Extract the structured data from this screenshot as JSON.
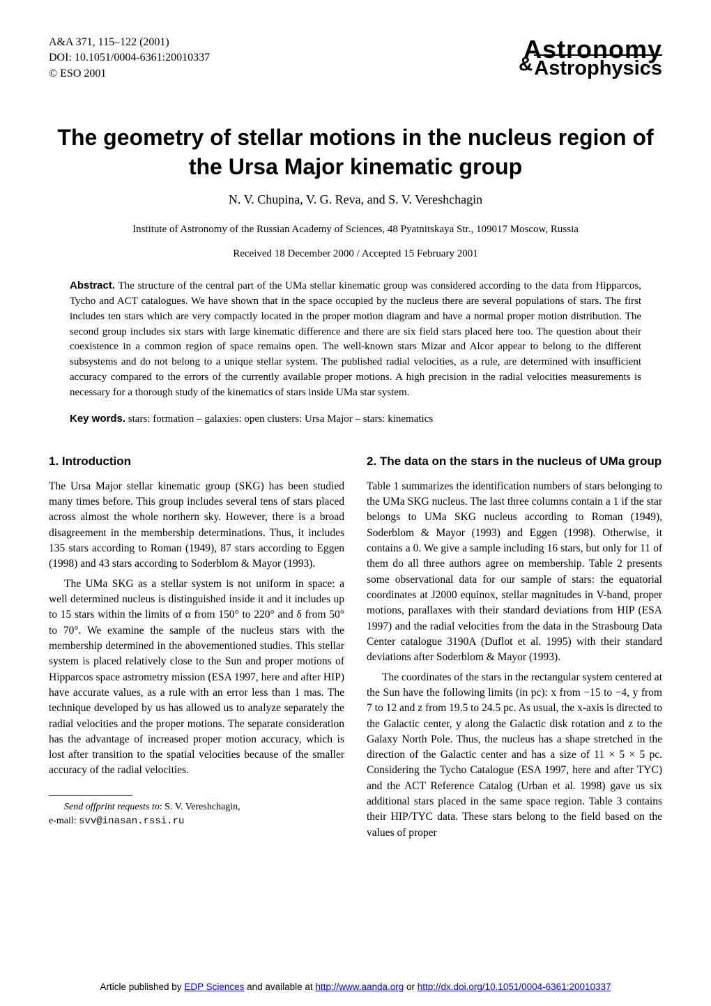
{
  "journal": {
    "citation": "A&A 371, 115–122 (2001)",
    "doi": "DOI: 10.1051/0004-6361:20010337",
    "copyright": "© ESO 2001"
  },
  "logo": {
    "line1": "Astronomy",
    "amp": "&",
    "line2": "Astrophysics"
  },
  "title": "The geometry of stellar motions in the nucleus region of the Ursa Major kinematic group",
  "authors": "N. V. Chupina, V. G. Reva, and S. V. Vereshchagin",
  "affiliation": "Institute of Astronomy of the Russian Academy of Sciences, 48 Pyatnitskaya Str., 109017 Moscow, Russia",
  "dates": "Received 18 December 2000 / Accepted 15 February 2001",
  "abstract": {
    "label": "Abstract.",
    "text": " The structure of the central part of the UMa stellar kinematic group was considered according to the data from Hipparcos, Tycho and ACT catalogues. We have shown that in the space occupied by the nucleus there are several populations of stars. The first includes ten stars which are very compactly located in the proper motion diagram and have a normal proper motion distribution. The second group includes six stars with large kinematic difference and there are six field stars placed here too. The question about their coexistence in a common region of space remains open. The well-known stars Mizar and Alcor appear to belong to the different subsystems and do not belong to a unique stellar system. The published radial velocities, as a rule, are determined with insufficient accuracy compared to the errors of the currently available proper motions. A high precision in the radial velocities measurements is necessary for a thorough study of the kinematics of stars inside UMa star system."
  },
  "keywords": {
    "label": "Key words.",
    "text": " stars: formation – galaxies: open clusters: Ursa Major – stars: kinematics"
  },
  "sections": {
    "s1": {
      "heading": "1. Introduction",
      "p1": "The Ursa Major stellar kinematic group (SKG) has been studied many times before. This group includes several tens of stars placed across almost the whole northern sky. However, there is a broad disagreement in the membership determinations. Thus, it includes 135 stars according to Roman (1949), 87 stars according to Eggen (1998) and 43 stars according to Soderblom & Mayor (1993).",
      "p2": "The UMa SKG as a stellar system is not uniform in space: a well determined nucleus is distinguished inside it and it includes up to 15 stars within the limits of α from 150° to 220° and δ from 50° to 70°. We examine the sample of the nucleus stars with the membership determined in the abovementioned studies. This stellar system is placed relatively close to the Sun and proper motions of Hipparcos space astrometry mission (ESA 1997, here and after HIP) have accurate values, as a rule with an error less than 1 mas. The technique developed by us has allowed us to analyze separately the radial velocities and the proper motions. The separate consideration has the advantage of increased proper motion accuracy, which is lost after transition to the spatial velocities because of the smaller accuracy of the radial velocities."
    },
    "s2": {
      "heading": "2. The data on the stars in the nucleus of UMa group",
      "p1": "Table 1 summarizes the identification numbers of stars belonging to the UMa SKG nucleus. The last three columns contain a 1 if the star belongs to UMa SKG nucleus according to Roman (1949), Soderblom & Mayor (1993) and Eggen (1998). Otherwise, it contains a 0. We give a sample including 16 stars, but only for 11 of them do all three authors agree on membership. Table 2 presents some observational data for our sample of stars: the equatorial coordinates at J2000 equinox, stellar magnitudes in V-band, proper motions, parallaxes with their standard deviations from HIP (ESA 1997) and the radial velocities from the data in the Strasbourg Data Center catalogue 3190A (Duflot et al. 1995) with their standard deviations after Soderblom & Mayor (1993).",
      "p2": "The coordinates of the stars in the rectangular system centered at the Sun have the following limits (in pc): x from −15 to −4, y from 7 to 12 and z from 19.5 to 24.5 pc. As usual, the x-axis is directed to the Galactic center, y along the Galactic disk rotation and z to the Galaxy North Pole. Thus, the nucleus has a shape stretched in the direction of the Galactic center and has a size of 11 × 5 × 5 pc. Considering the Tycho Catalogue (ESA 1997, here and after TYC) and the ACT Reference Catalog (Urban et al. 1998) gave us six additional stars placed in the same space region. Table 3 contains their HIP/TYC data. These stars belong to the field based on the values of proper"
    }
  },
  "footnote": {
    "label": "Send offprint requests to",
    "name": ": S. V. Vereshchagin,",
    "email_label": "e-mail: ",
    "email": "svv@inasan.rssi.ru"
  },
  "footer": {
    "prefix": "Article published by ",
    "link1_text": "EDP Sciences",
    "link1_href": "http://www.edpsciences.org",
    "middle": " and available at ",
    "link2_text": "http://www.aanda.org",
    "link2_href": "http://www.aanda.org",
    "or": " or ",
    "link3_text": "http://dx.doi.org/10.1051/0004-6361:20010337",
    "link3_href": "http://dx.doi.org/10.1051/0004-6361:20010337"
  }
}
